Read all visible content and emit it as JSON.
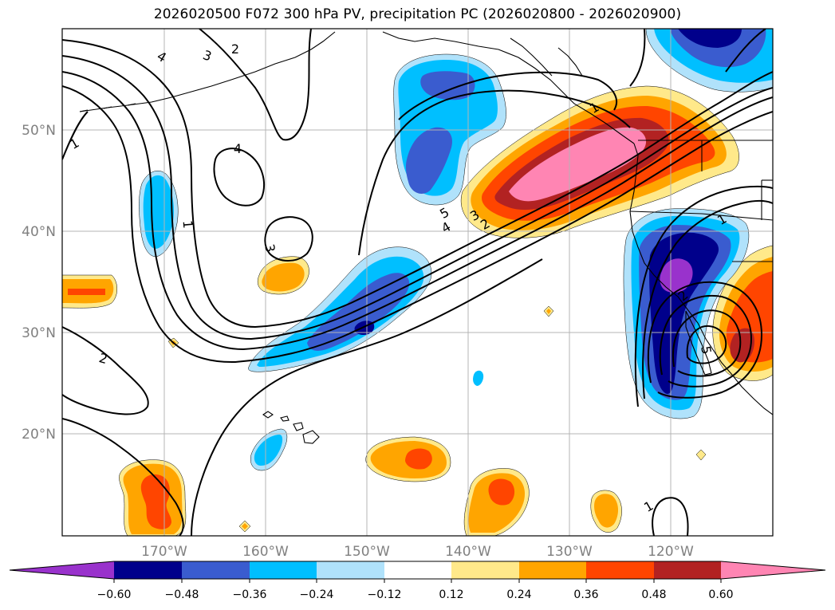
{
  "title": "2026020500 F072 300 hPa PV, precipitation PC (2026020800 - 2026020900)",
  "colors": {
    "neg_060_below": "#9932cc",
    "neg_060_048": "#00008b",
    "neg_048_036": "#3a5ccf",
    "neg_036_024": "#00bfff",
    "neg_024_012": "#b0e2fb",
    "neutral": "#ffffff",
    "pos_012_024": "#ffe98a",
    "pos_024_036": "#ffa500",
    "pos_036_048": "#ff4500",
    "pos_048_060": "#b22222",
    "pos_060_above": "#ff85b3",
    "grid": "#b4b4b4",
    "coast": "#000000"
  },
  "map": {
    "lon_labels": [
      "170°W",
      "160°W",
      "150°W",
      "140°W",
      "130°W",
      "120°W"
    ],
    "lat_labels": [
      "50°N",
      "40°N",
      "30°N",
      "20°N"
    ]
  },
  "pv_contour_labels": [
    "4",
    "3",
    "2",
    "1",
    "4",
    "1",
    "3",
    "2",
    "5",
    "4",
    "3",
    "2",
    "1",
    "1",
    "2",
    "5",
    "1"
  ],
  "colorbar": {
    "ticks": [
      "−0.60",
      "−0.48",
      "−0.36",
      "−0.24",
      "−0.12",
      "0.12",
      "0.24",
      "0.36",
      "0.48",
      "0.60"
    ],
    "extend": "both"
  }
}
